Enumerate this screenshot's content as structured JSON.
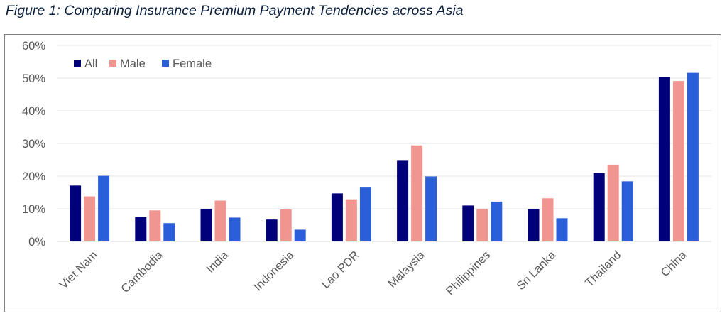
{
  "figure_title": "Figure 1: Comparing Insurance Premium Payment Tendencies across Asia",
  "chart_data": {
    "type": "bar",
    "title": "Figure 1: Comparing Insurance Premium Payment Tendencies across Asia",
    "xlabel": "",
    "ylabel": "",
    "ylim": [
      0,
      0.6
    ],
    "yticks": [
      "0%",
      "10%",
      "20%",
      "30%",
      "40%",
      "50%",
      "60%"
    ],
    "grid": true,
    "legend_position": "top-left",
    "categories": [
      "Viet Nam",
      "Cambodia",
      "India",
      "Indonesia",
      "Lao PDR",
      "Malaysia",
      "Philippines",
      "Sri Lanka",
      "Thailand",
      "China"
    ],
    "series": [
      {
        "name": "All",
        "color": "#00007a",
        "values": [
          0.171,
          0.075,
          0.099,
          0.067,
          0.147,
          0.247,
          0.11,
          0.099,
          0.209,
          0.503
        ]
      },
      {
        "name": "Male",
        "color": "#f0958f",
        "values": [
          0.138,
          0.095,
          0.125,
          0.098,
          0.129,
          0.294,
          0.099,
          0.132,
          0.235,
          0.491
        ]
      },
      {
        "name": "Female",
        "color": "#2b5fd9",
        "values": [
          0.201,
          0.056,
          0.073,
          0.036,
          0.165,
          0.199,
          0.122,
          0.071,
          0.184,
          0.516
        ]
      }
    ]
  }
}
